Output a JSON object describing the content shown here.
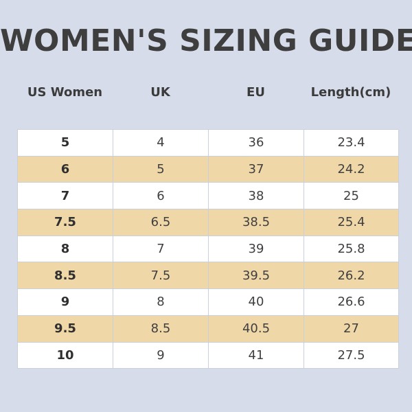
{
  "title": "WOMEN'S SIZING GUIDE",
  "headers": [
    "US Women",
    "UK",
    "EU",
    "Length(cm)"
  ],
  "rows": [
    [
      "5",
      "4",
      "36",
      "23.4"
    ],
    [
      "6",
      "5",
      "37",
      "24.2"
    ],
    [
      "7",
      "6",
      "38",
      "25"
    ],
    [
      "7.5",
      "6.5",
      "38.5",
      "25.4"
    ],
    [
      "8",
      "7",
      "39",
      "25.8"
    ],
    [
      "8.5",
      "7.5",
      "39.5",
      "26.2"
    ],
    [
      "9",
      "8",
      "40",
      "26.6"
    ],
    [
      "9.5",
      "8.5",
      "40.5",
      "27"
    ],
    [
      "10",
      "9",
      "41",
      "27.5"
    ]
  ],
  "colors": {
    "background": "#d6dcea",
    "row_alt": "#f0d7a8",
    "row_base": "#ffffff"
  }
}
